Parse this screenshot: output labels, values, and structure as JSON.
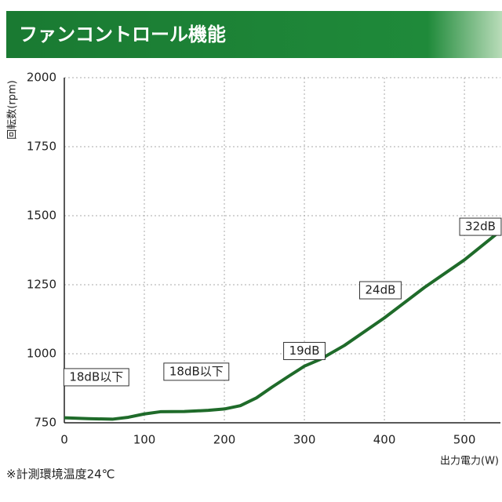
{
  "chart_data": {
    "type": "line",
    "title": "ファンコントロール機能",
    "y_label": "回転数(rpm)",
    "x_label": "出力電力(W)",
    "note": "※計測環境温度24℃",
    "x": [
      0,
      30,
      60,
      80,
      100,
      120,
      150,
      180,
      200,
      220,
      240,
      260,
      280,
      300,
      320,
      350,
      400,
      450,
      500,
      545
    ],
    "series": [
      {
        "name": "回転数",
        "color": "#1f6b2a",
        "values": [
          768,
          765,
          763,
          770,
          782,
          790,
          791,
          795,
          800,
          812,
          840,
          880,
          918,
          955,
          980,
          1030,
          1130,
          1240,
          1340,
          1445
        ]
      }
    ],
    "xlim": [
      0,
      545
    ],
    "xticks": [
      0,
      100,
      200,
      300,
      400,
      500
    ],
    "ylim": [
      750,
      2000
    ],
    "yticks": [
      750,
      1000,
      1250,
      1500,
      1750,
      2000
    ],
    "grid": true,
    "annotations": [
      {
        "text": "18dB以下",
        "x": 40,
        "y": 915
      },
      {
        "text": "18dB以下",
        "x": 165,
        "y": 935
      },
      {
        "text": "19dB",
        "x": 300,
        "y": 1010
      },
      {
        "text": "24dB",
        "x": 395,
        "y": 1230
      },
      {
        "text": "32dB",
        "x": 520,
        "y": 1460
      }
    ]
  }
}
